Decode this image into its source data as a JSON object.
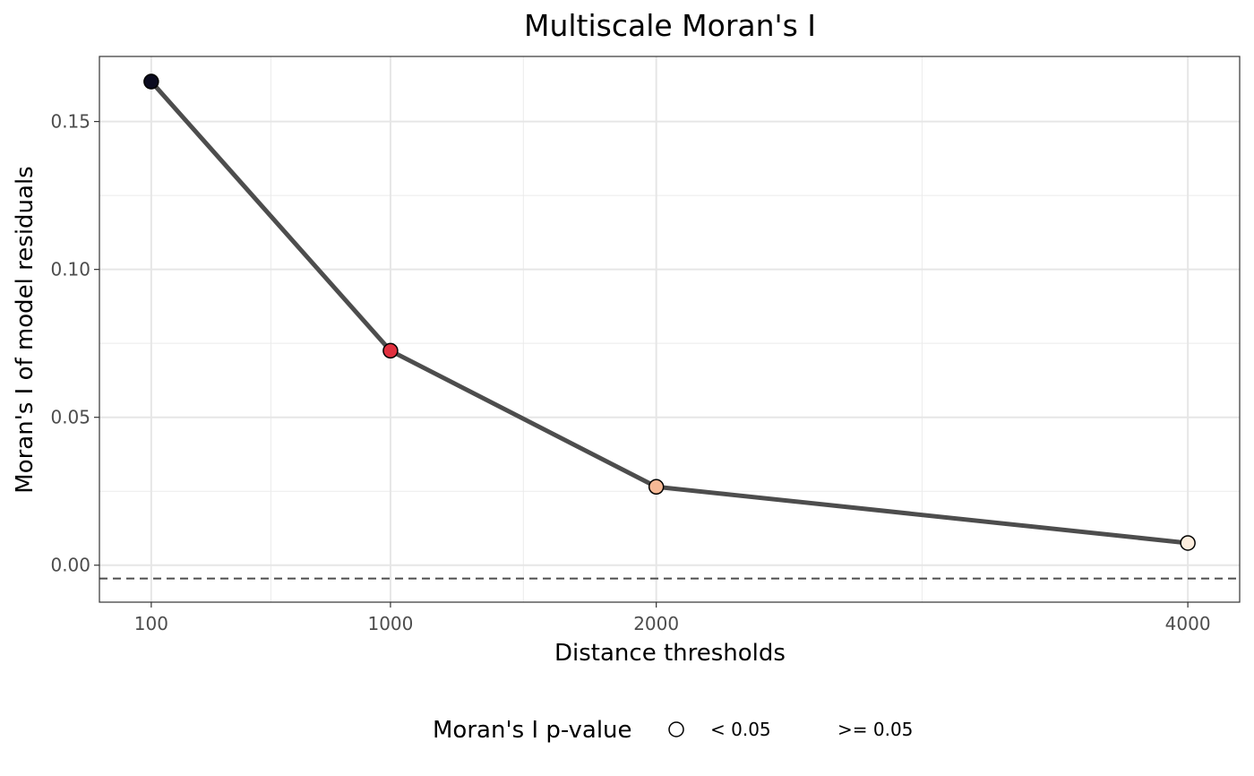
{
  "chart_data": {
    "type": "line",
    "title": "Multiscale Moran's I",
    "xlabel": "Distance thresholds",
    "ylabel": "Moran's I of model residuals",
    "x": [
      100,
      1000,
      2000,
      4000
    ],
    "y": [
      0.1635,
      0.0725,
      0.0265,
      0.0075
    ],
    "point_colors": [
      "#0b0b1f",
      "#e0303f",
      "#f5b895",
      "#fdeede"
    ],
    "line_color": "#4d4d4d",
    "x_ticks": [
      100,
      1000,
      2000,
      4000
    ],
    "x_tick_labels": [
      "100",
      "1000",
      "2000",
      "4000"
    ],
    "y_ticks": [
      0.0,
      0.05,
      0.1,
      0.15
    ],
    "y_tick_labels": [
      "0.00",
      "0.05",
      "0.10",
      "0.15"
    ],
    "xlim": [
      -95,
      4195
    ],
    "ylim": [
      -0.0125,
      0.172
    ],
    "reference_line": {
      "y": -0.0045,
      "style": "dashed"
    },
    "grid": true,
    "legend": {
      "title": "Moran's I p-value",
      "placement": "bottom",
      "entries": [
        {
          "label": "< 0.05",
          "shape": "open-circle"
        },
        {
          "label": ">= 0.05",
          "shape": "none"
        }
      ]
    }
  }
}
